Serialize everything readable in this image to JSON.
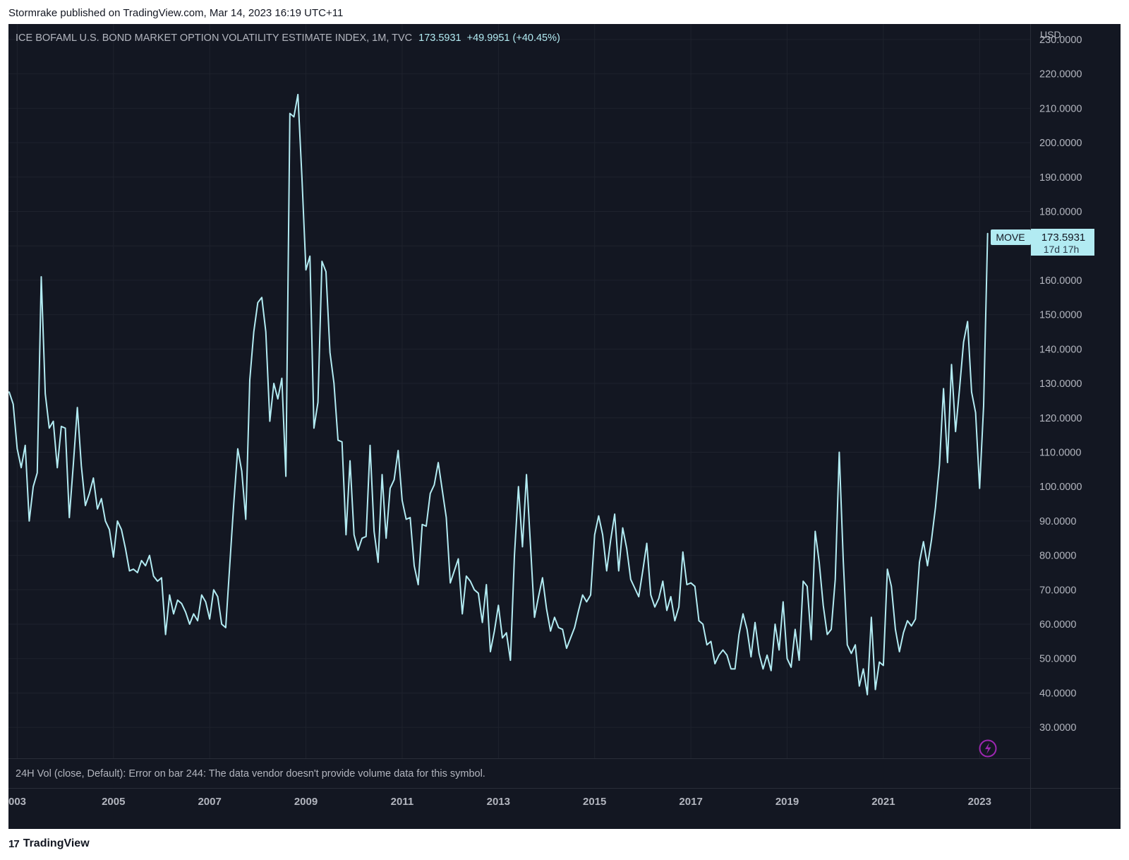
{
  "header": {
    "published_line": "Stormrake published on TradingView.com, Mar 14, 2023 16:19 UTC+11"
  },
  "legend": {
    "symbol_text": "ICE BOFAML U.S. BOND MARKET OPTION VOLATILITY ESTIMATE INDEX, 1M, TVC",
    "last_value": "173.5931",
    "change": "+49.9951 (+40.45%)"
  },
  "price_scale": {
    "currency": "USD"
  },
  "last_price_tag": {
    "symbol": "MOVE",
    "price": "173.5931",
    "countdown": "17d 17h"
  },
  "volume_pane": {
    "message": "24H Vol (close, Default): Error on bar 244: The data vendor doesn't provide volume data for this symbol."
  },
  "footer": {
    "brand": "TradingView",
    "logo_mark": "17"
  },
  "colors": {
    "background": "#131722",
    "line": "#b2ebf2",
    "text_muted": "#b2b5be",
    "grid": "#1e222d",
    "tag_bg": "#b2ebf2",
    "bolt": "#9c27b0"
  },
  "icons": {
    "bolt": "lightning-bolt-icon"
  },
  "chart_data": {
    "type": "line",
    "title": "ICE BOFAML U.S. BOND MARKET OPTION VOLATILITY ESTIMATE INDEX, 1M, TVC",
    "interval": "1M",
    "x_start": "2002-11",
    "x_end": "2023-03",
    "x_ticks": [
      "003",
      "2005",
      "2007",
      "2009",
      "2011",
      "2013",
      "2015",
      "2017",
      "2019",
      "2021",
      "2023"
    ],
    "y_ticks": [
      "30.0000",
      "40.0000",
      "50.0000",
      "60.0000",
      "70.0000",
      "80.0000",
      "90.0000",
      "100.0000",
      "110.0000",
      "120.0000",
      "130.0000",
      "140.0000",
      "150.0000",
      "160.0000",
      "170.0000",
      "180.0000",
      "190.0000",
      "200.0000",
      "210.0000",
      "220.0000",
      "230.0000"
    ],
    "ylim": [
      21,
      234.5
    ],
    "ylabel": "USD",
    "grid": true,
    "series": [
      {
        "name": "MOVE",
        "values": [
          127.5,
          124,
          111,
          105.5,
          112,
          90,
          100,
          104,
          161,
          127,
          117,
          119,
          105.5,
          117.5,
          117,
          91,
          106.5,
          123,
          106,
          94.5,
          98,
          102.5,
          93.5,
          96.5,
          90,
          87.5,
          79.5,
          90,
          87.5,
          82,
          75.5,
          76,
          75,
          78.5,
          77,
          80,
          74,
          72.5,
          73.5,
          57,
          68.5,
          63,
          67,
          66,
          63.5,
          60,
          63,
          61,
          68.5,
          66.5,
          61.5,
          70,
          68,
          60,
          59,
          77,
          95,
          111,
          104.5,
          90.5,
          131,
          145,
          153.5,
          155,
          145,
          119,
          130,
          125.5,
          131.5,
          103,
          208.5,
          207.5,
          214,
          190,
          163,
          167,
          117,
          124.5,
          165.5,
          162.5,
          139,
          130,
          113.5,
          113,
          86,
          107.5,
          86,
          81.5,
          85,
          85.5,
          112,
          87,
          78,
          103.5,
          85,
          99.5,
          102,
          110.5,
          96,
          90.5,
          91,
          77,
          71.5,
          89,
          88.5,
          98,
          100.5,
          107,
          99,
          91,
          72,
          75.5,
          79,
          63,
          74,
          72.5,
          70,
          69,
          60.5,
          71.5,
          52,
          58,
          65.5,
          56,
          57.5,
          49.5,
          80,
          100,
          82.5,
          103.5,
          83,
          62,
          68,
          73.5,
          64.5,
          58,
          62,
          59,
          58.5,
          53,
          56,
          59,
          64,
          68.5,
          66.5,
          68.5,
          86,
          91.5,
          86,
          75.5,
          84.5,
          92,
          75.5,
          88,
          82,
          73,
          70.5,
          68,
          75.5,
          83.5,
          68.5,
          65,
          67.5,
          72.5,
          64,
          68,
          61,
          65,
          81,
          71.5,
          72,
          71,
          61,
          60,
          54,
          55,
          48.5,
          51,
          52.5,
          51,
          47,
          47,
          57,
          63,
          58.5,
          50.5,
          60.5,
          51.5,
          47,
          51,
          46.5,
          60,
          52.5,
          66.5,
          50,
          47.5,
          58.5,
          49.5,
          72.5,
          71,
          55.5,
          87,
          78,
          65.5,
          57,
          58.5,
          73,
          110,
          78.5,
          54,
          51.5,
          54,
          42,
          47,
          39.5,
          62,
          41,
          49,
          48,
          76,
          71,
          58.5,
          52,
          57.5,
          61,
          59.5,
          61.5,
          78,
          84,
          77,
          84.5,
          94,
          106.5,
          128.5,
          107,
          135.5,
          116,
          128.5,
          142,
          148,
          127.5,
          121.5,
          99.5,
          123.5,
          173.5931
        ]
      }
    ]
  }
}
